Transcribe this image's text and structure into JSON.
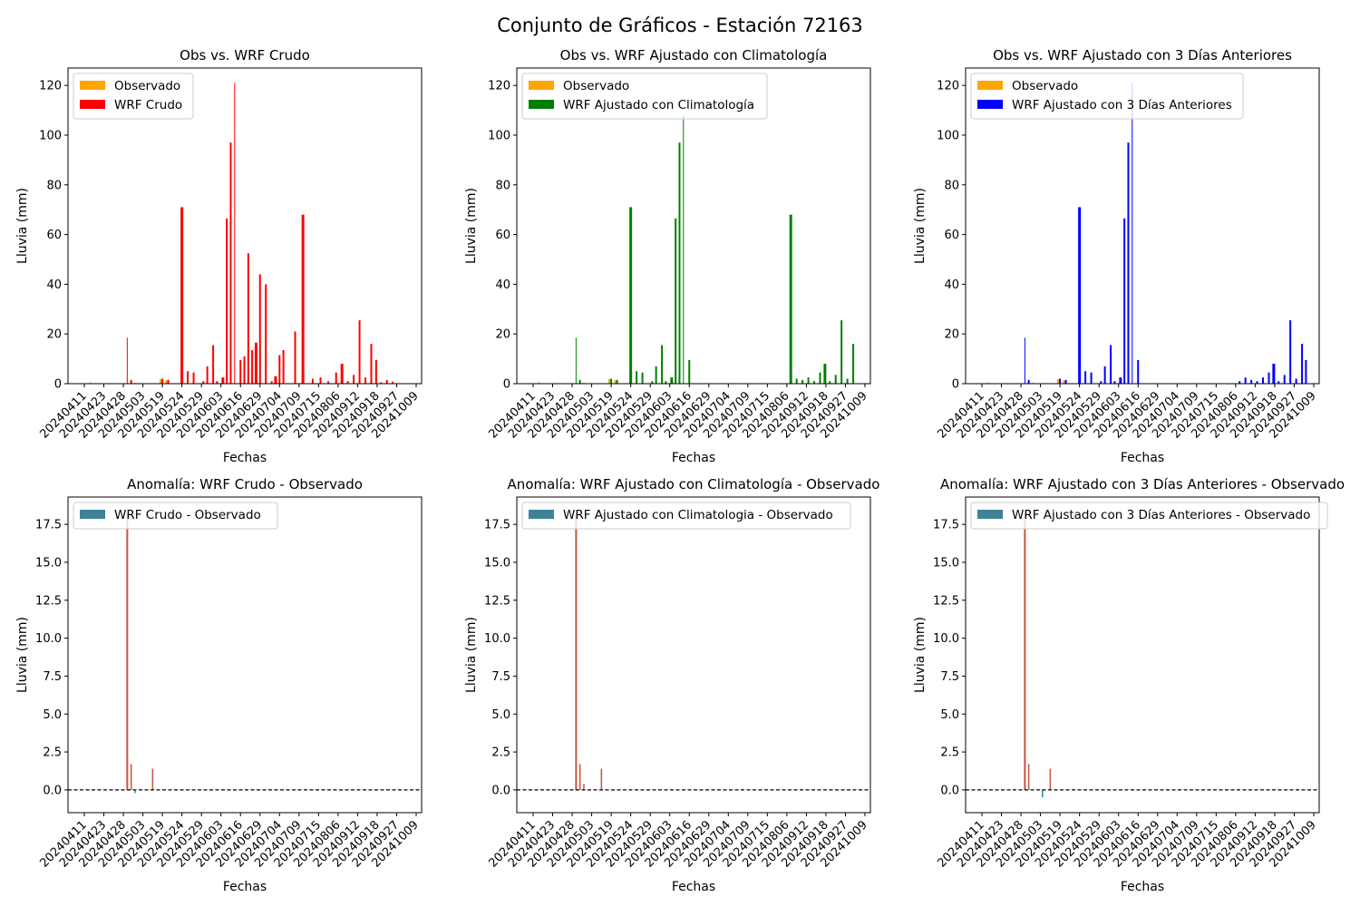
{
  "suptitle": "Conjunto de Gráficos - Estación 72163",
  "colors": {
    "observed": "#ffa500",
    "wrf_raw": "#ff0000",
    "wrf_clim": "#008000",
    "wrf_prev3": "#0000ff",
    "anomaly_legend": "#3f8197",
    "anomaly_positive": "#c8553d",
    "anomaly_negative": "#3f8197",
    "zero_line": "#000000"
  },
  "chart_data": [
    {
      "type": "bar",
      "title": "Obs vs. WRF Crudo",
      "xlabel": "Fechas",
      "ylabel": "Lluvia (mm)",
      "ylim": [
        0,
        127
      ],
      "yticks": [
        "0",
        "20",
        "40",
        "60",
        "80",
        "100",
        "120"
      ],
      "xticks": [
        "20240411",
        "20240423",
        "20240428",
        "20240503",
        "20240519",
        "20240524",
        "20240529",
        "20240603",
        "20240616",
        "20240629",
        "20240704",
        "20240709",
        "20240715",
        "20240806",
        "20240912",
        "20240918",
        "20240927",
        "20241009"
      ],
      "legend": [
        "Observado",
        "WRF Crudo"
      ],
      "legend_position": "upper left",
      "series": [
        {
          "name": "Observado",
          "color_key": "observed",
          "x": [
            0.3,
            2.6,
            3.9,
            4.2,
            7.3
          ],
          "values": [
            0.4,
            0.3,
            1.8,
            1.4,
            0.2
          ]
        },
        {
          "name": "WRF Crudo",
          "color_key": "wrf_raw",
          "x": [
            2.2,
            2.4,
            4.0,
            4.3,
            5.0,
            5.3,
            5.6,
            6.1,
            6.3,
            6.6,
            6.8,
            7.1,
            7.3,
            7.5,
            7.7,
            8.0,
            8.2,
            8.4,
            8.6,
            8.8,
            9.0,
            9.3,
            9.6,
            9.8,
            10.0,
            10.2,
            10.8,
            11.2,
            11.7,
            12.1,
            12.5,
            12.9,
            13.2,
            13.5,
            13.8,
            14.1,
            14.4,
            14.7,
            14.95,
            15.2,
            15.5,
            15.8
          ],
          "values": [
            18.5,
            1.5,
            2,
            1.5,
            71,
            5,
            4.5,
            1,
            7,
            15.5,
            1,
            2.5,
            66.5,
            97,
            121,
            9.5,
            11,
            52.5,
            13.5,
            16.5,
            44,
            40,
            1,
            3,
            11.5,
            13.5,
            21,
            68,
            2,
            2.5,
            1,
            4.5,
            8,
            1,
            3.5,
            25.5,
            2.5,
            16,
            9.5,
            0.5,
            1.5,
            0.8
          ],
          "widths": [
            1,
            2,
            2,
            2,
            3,
            2,
            2,
            2,
            2,
            2,
            2,
            3,
            2,
            2,
            1,
            2,
            2,
            2,
            2,
            3,
            2,
            2,
            2,
            3,
            2,
            2,
            2,
            3,
            2,
            2,
            2,
            2,
            3,
            2,
            2,
            2,
            2,
            2,
            2,
            2,
            2,
            2
          ]
        }
      ]
    },
    {
      "type": "bar",
      "title": "Obs vs. WRF Ajustado con Climatología",
      "xlabel": "Fechas",
      "ylabel": "Lluvia (mm)",
      "ylim": [
        0,
        127
      ],
      "yticks": [
        "0",
        "20",
        "40",
        "60",
        "80",
        "100",
        "120"
      ],
      "xticks": [
        "20240411",
        "20240423",
        "20240428",
        "20240503",
        "20240519",
        "20240524",
        "20240529",
        "20240603",
        "20240616",
        "20240629",
        "20240704",
        "20240709",
        "20240715",
        "20240806",
        "20240912",
        "20240918",
        "20240927",
        "20241009"
      ],
      "legend": [
        "Observado",
        "WRF Ajustado con Climatología"
      ],
      "legend_position": "upper left",
      "series": [
        {
          "name": "Observado",
          "color_key": "observed",
          "x": [
            0.3,
            2.6,
            3.9,
            4.2,
            7.3
          ],
          "values": [
            0.4,
            0.3,
            1.8,
            1.4,
            0.2
          ]
        },
        {
          "name": "WRF Ajustado con Climatología",
          "color_key": "wrf_clim",
          "x": [
            2.2,
            2.4,
            4.0,
            4.3,
            5.0,
            5.3,
            5.6,
            6.1,
            6.3,
            6.6,
            6.8,
            7.1,
            7.3,
            7.5,
            7.7,
            8.0,
            13.2,
            13.5,
            13.8,
            14.1,
            14.4,
            14.7,
            14.95,
            15.2,
            15.5,
            15.8,
            16.1,
            16.4
          ],
          "values": [
            18.5,
            1.5,
            2,
            1.5,
            71,
            5,
            4.5,
            1,
            7,
            15.5,
            1,
            2.5,
            66.5,
            97,
            108,
            9.5,
            68,
            2,
            1.5,
            2.5,
            1,
            4.5,
            8,
            1,
            3.5,
            25.5,
            2,
            16
          ],
          "widths": [
            1,
            2,
            2,
            2,
            3,
            2,
            2,
            2,
            2,
            2,
            2,
            3,
            2,
            2,
            1,
            2,
            3,
            2,
            2,
            2,
            2,
            2,
            3,
            2,
            2,
            2,
            2,
            2
          ]
        }
      ]
    },
    {
      "type": "bar",
      "title": "Obs vs. WRF Ajustado con 3 Días Anteriores",
      "xlabel": "Fechas",
      "ylabel": "Lluvia (mm)",
      "ylim": [
        0,
        127
      ],
      "yticks": [
        "0",
        "20",
        "40",
        "60",
        "80",
        "100",
        "120"
      ],
      "xticks": [
        "20240411",
        "20240423",
        "20240428",
        "20240503",
        "20240519",
        "20240524",
        "20240529",
        "20240603",
        "20240616",
        "20240629",
        "20240704",
        "20240709",
        "20240715",
        "20240806",
        "20240912",
        "20240918",
        "20240927",
        "20241009"
      ],
      "legend": [
        "Observado",
        "WRF Ajustado con 3 Días Anteriores"
      ],
      "legend_position": "upper left",
      "series": [
        {
          "name": "Observado",
          "color_key": "observed",
          "x": [
            0.3,
            2.6,
            3.9,
            4.2,
            7.3
          ],
          "values": [
            0.4,
            0.3,
            1.8,
            1.4,
            0.2
          ]
        },
        {
          "name": "WRF Ajustado con 3 Días Anteriores",
          "color_key": "wrf_prev3",
          "x": [
            2.2,
            2.4,
            4.0,
            4.3,
            5.0,
            5.3,
            5.6,
            6.1,
            6.3,
            6.6,
            6.8,
            7.1,
            7.3,
            7.5,
            7.7,
            8.0,
            13.2,
            13.5,
            13.8,
            14.1,
            14.4,
            14.7,
            14.95,
            15.2,
            15.5,
            15.8,
            16.1,
            16.4,
            16.6
          ],
          "values": [
            18.5,
            1.5,
            2,
            1.5,
            71,
            5,
            4.5,
            1,
            7,
            15.5,
            1,
            2.5,
            66.5,
            97,
            121,
            9.5,
            1,
            2.5,
            1.5,
            1,
            2.5,
            4.5,
            8,
            1,
            3.5,
            25.5,
            2,
            16,
            9.5
          ],
          "widths": [
            1,
            2,
            2,
            2,
            3,
            2,
            2,
            2,
            2,
            2,
            2,
            3,
            2,
            2,
            1,
            2,
            2,
            2,
            2,
            2,
            2,
            2,
            3,
            2,
            2,
            2,
            2,
            2,
            2
          ]
        }
      ]
    },
    {
      "type": "bar",
      "title": "Anomalía: WRF Crudo - Observado",
      "xlabel": "Fechas",
      "ylabel": "Lluvia (mm)",
      "ylim": [
        -1.5,
        19.3
      ],
      "yticks": [
        "0.0",
        "2.5",
        "5.0",
        "7.5",
        "10.0",
        "12.5",
        "15.0",
        "17.5"
      ],
      "xticks": [
        "20240411",
        "20240423",
        "20240428",
        "20240503",
        "20240519",
        "20240524",
        "20240529",
        "20240603",
        "20240616",
        "20240629",
        "20240704",
        "20240709",
        "20240715",
        "20240806",
        "20240912",
        "20240918",
        "20240927",
        "20241009"
      ],
      "legend": [
        "WRF Crudo - Observado"
      ],
      "legend_position": "upper left",
      "series": [
        {
          "name": "WRF Crudo - Observado",
          "x": [
            2.2,
            2.4,
            2.6,
            3.5
          ],
          "values": [
            18.2,
            1.7,
            -0.2,
            1.4
          ]
        }
      ]
    },
    {
      "type": "bar",
      "title": "Anomalía: WRF Ajustado con Climatología - Observado",
      "xlabel": "Fechas",
      "ylabel": "Lluvia (mm)",
      "ylim": [
        -1.5,
        19.3
      ],
      "yticks": [
        "0.0",
        "2.5",
        "5.0",
        "7.5",
        "10.0",
        "12.5",
        "15.0",
        "17.5"
      ],
      "xticks": [
        "20240411",
        "20240423",
        "20240428",
        "20240503",
        "20240519",
        "20240524",
        "20240529",
        "20240603",
        "20240616",
        "20240629",
        "20240704",
        "20240709",
        "20240715",
        "20240806",
        "20240912",
        "20240918",
        "20240927",
        "20241009"
      ],
      "legend": [
        "WRF Ajustado con Climatologia - Observado"
      ],
      "legend_position": "upper left",
      "series": [
        {
          "name": "WRF Ajustado con Climatologia - Observado",
          "x": [
            2.2,
            2.4,
            2.6,
            3.5
          ],
          "values": [
            18.2,
            1.7,
            0.4,
            1.4
          ]
        }
      ]
    },
    {
      "type": "bar",
      "title": "Anomalía: WRF Ajustado con 3 Días Anteriores - Observado",
      "xlabel": "Fechas",
      "ylabel": "Lluvia (mm)",
      "ylim": [
        -1.5,
        19.3
      ],
      "yticks": [
        "0.0",
        "2.5",
        "5.0",
        "7.5",
        "10.0",
        "12.5",
        "15.0",
        "17.5"
      ],
      "xticks": [
        "20240411",
        "20240423",
        "20240428",
        "20240503",
        "20240519",
        "20240524",
        "20240529",
        "20240603",
        "20240616",
        "20240629",
        "20240704",
        "20240709",
        "20240715",
        "20240806",
        "20240912",
        "20240918",
        "20240927",
        "20241009"
      ],
      "legend": [
        "WRF Ajustado con 3 Días Anteriores - Observado"
      ],
      "legend_position": "upper left",
      "series": [
        {
          "name": "WRF Ajustado con 3 Días Anteriores - Observado",
          "x": [
            2.2,
            2.4,
            3.1,
            3.5
          ],
          "values": [
            18.2,
            1.7,
            -0.5,
            1.4
          ]
        }
      ]
    }
  ]
}
